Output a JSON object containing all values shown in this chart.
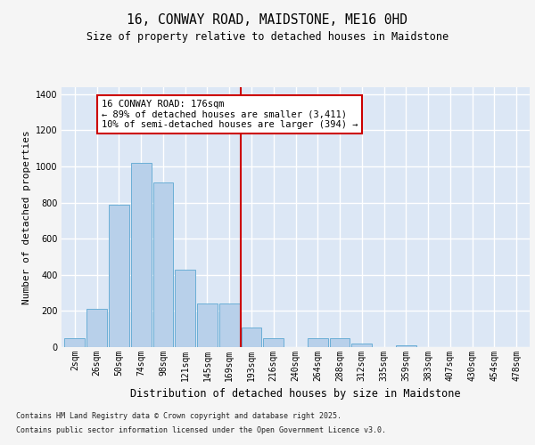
{
  "title_line1": "16, CONWAY ROAD, MAIDSTONE, ME16 0HD",
  "title_line2": "Size of property relative to detached houses in Maidstone",
  "xlabel": "Distribution of detached houses by size in Maidstone",
  "ylabel": "Number of detached properties",
  "categories": [
    "2sqm",
    "26sqm",
    "50sqm",
    "74sqm",
    "98sqm",
    "121sqm",
    "145sqm",
    "169sqm",
    "193sqm",
    "216sqm",
    "240sqm",
    "264sqm",
    "288sqm",
    "312sqm",
    "335sqm",
    "359sqm",
    "383sqm",
    "407sqm",
    "430sqm",
    "454sqm",
    "478sqm"
  ],
  "values": [
    50,
    210,
    790,
    1020,
    910,
    430,
    240,
    240,
    110,
    50,
    0,
    50,
    50,
    20,
    0,
    10,
    0,
    0,
    0,
    0,
    0
  ],
  "bar_color": "#b8d0ea",
  "bar_edge_color": "#6baed6",
  "plot_bg_color": "#dce7f5",
  "fig_bg_color": "#f5f5f5",
  "grid_color": "#ffffff",
  "vline_color": "#cc0000",
  "vline_x": 7.5,
  "annotation_text": "16 CONWAY ROAD: 176sqm\n← 89% of detached houses are smaller (3,411)\n10% of semi-detached houses are larger (394) →",
  "annotation_box_edge_color": "#cc0000",
  "ylim": [
    0,
    1440
  ],
  "yticks": [
    0,
    200,
    400,
    600,
    800,
    1000,
    1200,
    1400
  ],
  "footnote1": "Contains HM Land Registry data © Crown copyright and database right 2025.",
  "footnote2": "Contains public sector information licensed under the Open Government Licence v3.0.",
  "title_fontsize": 10.5,
  "subtitle_fontsize": 8.5,
  "tick_fontsize": 7,
  "ylabel_fontsize": 8,
  "xlabel_fontsize": 8.5,
  "annot_fontsize": 7.5,
  "footnote_fontsize": 6.0
}
